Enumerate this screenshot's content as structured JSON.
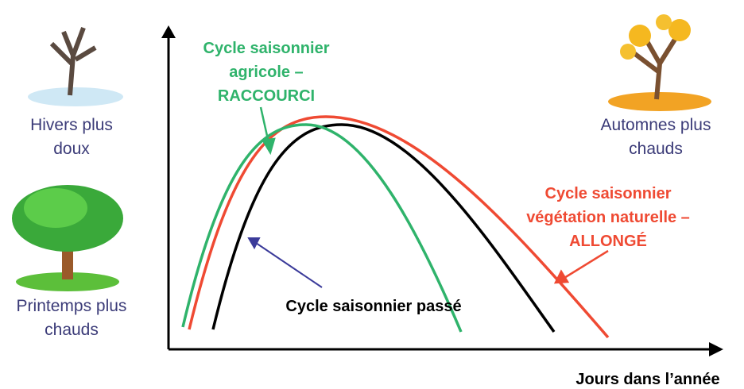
{
  "labels": {
    "hivers": [
      "Hivers plus",
      "doux"
    ],
    "printemps": [
      "Printemps plus",
      "chauds"
    ],
    "automnes": [
      "Automnes plus",
      "chauds"
    ],
    "agricole": [
      "Cycle saisonnier",
      "agricole –",
      "RACCOURCI"
    ],
    "naturelle": [
      "Cycle saisonnier",
      "végétation naturelle –",
      "ALLONGÉ"
    ],
    "passe": "Cycle saisonnier passé",
    "axis": "Jours dans l’année"
  }
}
